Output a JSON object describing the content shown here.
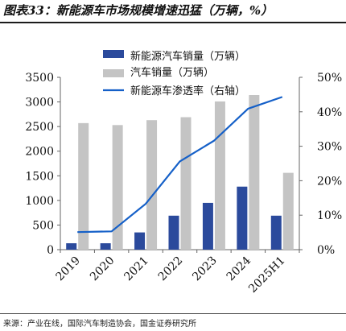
{
  "header": {
    "title": "图表33：新能源车市场规模增速迅猛（万辆，%）"
  },
  "footer": {
    "source": "来源：产业在线，国际汽车制造协会，国金证券研究所"
  },
  "chart_data": {
    "type": "bar",
    "title": "",
    "categories": [
      "2019",
      "2020",
      "2021",
      "2022",
      "2023",
      "2024",
      "2025H1"
    ],
    "series": [
      {
        "name": "新能源汽车销量（万辆）",
        "kind": "bar",
        "axis": "left",
        "color": "#2b4a9c",
        "values": [
          130,
          130,
          350,
          690,
          950,
          1280,
          690
        ]
      },
      {
        "name": "汽车销量（万辆）",
        "kind": "bar",
        "axis": "left",
        "color": "#c4c4c4",
        "values": [
          2570,
          2530,
          2630,
          2690,
          3010,
          3140,
          1560
        ]
      },
      {
        "name": "新能源车渗透率（右轴）",
        "kind": "line",
        "axis": "right",
        "color": "#1560c8",
        "values": [
          5.1,
          5.3,
          13.3,
          25.6,
          31.6,
          40.9,
          44.3
        ]
      }
    ],
    "y_left": {
      "min": 0,
      "max": 3500,
      "ticks": [
        0,
        500,
        1000,
        1500,
        2000,
        2500,
        3000,
        3500
      ]
    },
    "y_right": {
      "min": 0,
      "max": 50,
      "ticks": [
        0,
        10,
        20,
        30,
        40,
        50
      ],
      "unit": "%"
    },
    "legend_position": "top-center",
    "grid": false
  }
}
